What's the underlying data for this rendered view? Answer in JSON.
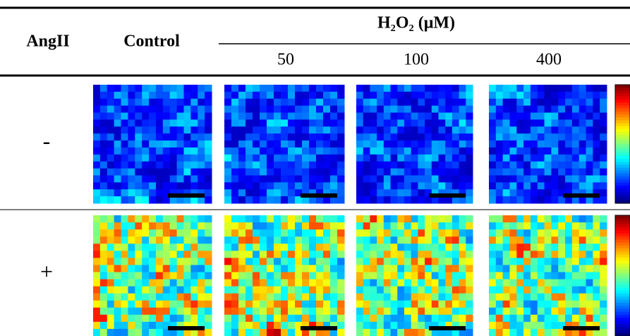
{
  "header": {
    "row_label": "AngII",
    "control": "Control",
    "group": "H₂O₂ (μM)",
    "columns": [
      "50",
      "100",
      "400"
    ]
  },
  "rows": [
    "-",
    "+"
  ]
}
